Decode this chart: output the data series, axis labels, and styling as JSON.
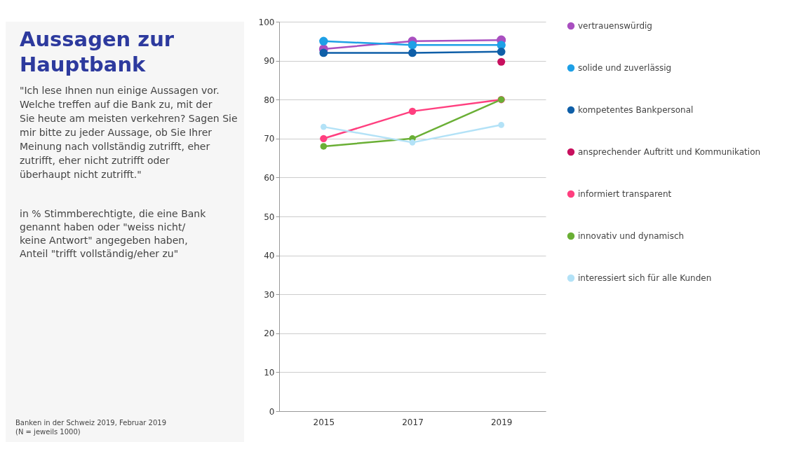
{
  "chart_data": {
    "type": "line",
    "title": "Aussagen zur Hauptbank",
    "subtitle": "\"Ich lese Ihnen nun einige Aussagen vor. Welche treffen auf die Bank zu, mit der Sie heute am meisten verkehren? Sagen Sie mir bitte zu jeder Aussage, ob Sie Ihrer Meinung nach vollständig zutrifft, eher zutrifft, eher nicht zutrifft oder überhaupt nicht zutrifft.\"",
    "annotations": [
      "in % Stimmberechtigte, die eine Bank genannt haben oder \"weiss nicht/ keine Antwort\" angegeben haben, Anteil \"trifft vollständig/eher zu\"",
      "Banken in der Schweiz 2019, Februar 2019",
      "(N = jeweils 1000)"
    ],
    "categories": [
      "2015",
      "2017",
      "2019"
    ],
    "series": [
      {
        "name": "vertrauenswürdig",
        "color": "#a94fc0",
        "values": [
          93,
          95,
          95.3
        ]
      },
      {
        "name": "solide und zuverlässig",
        "color": "#1ea0e6",
        "values": [
          95,
          94,
          94
        ]
      },
      {
        "name": "kompetentes Bankpersonal",
        "color": "#0f5fa8",
        "values": [
          92,
          92,
          92.3
        ]
      },
      {
        "name": "ansprechender Auftritt und Kommunikation",
        "color": "#c8105e",
        "values": [
          null,
          null,
          89.7
        ]
      },
      {
        "name": "informiert transparent",
        "color": "#ff3f7f",
        "values": [
          70,
          77,
          80
        ]
      },
      {
        "name": "innovativ und dynamisch",
        "color": "#6aaf35",
        "values": [
          68,
          70,
          80
        ]
      },
      {
        "name": "interessiert sich für alle Kunden",
        "color": "#b3e2f7",
        "values": [
          73,
          69,
          73.5
        ]
      }
    ],
    "ylim": [
      0,
      100
    ],
    "yticks": [
      0,
      10,
      20,
      30,
      40,
      50,
      60,
      70,
      80,
      90,
      100
    ],
    "grid": "y",
    "legend": "right",
    "marker": "circle",
    "line_style": "solid"
  }
}
